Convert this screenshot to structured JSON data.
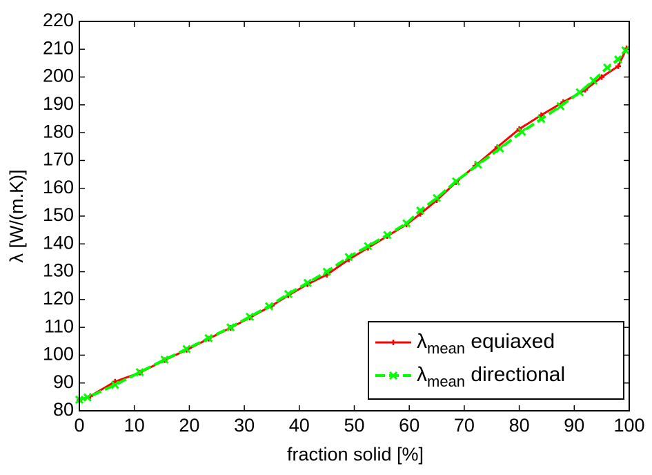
{
  "chart_data": {
    "type": "line",
    "xlabel": "fraction solid [%]",
    "ylabel": "λ [W/(m.K)]",
    "xlim": [
      0,
      100
    ],
    "xticks": [
      0,
      10,
      20,
      30,
      40,
      50,
      60,
      70,
      80,
      90,
      100
    ],
    "ylim": [
      80,
      220
    ],
    "yticks": [
      80,
      90,
      100,
      110,
      120,
      130,
      140,
      150,
      160,
      170,
      180,
      190,
      200,
      210,
      220
    ],
    "legend": "lower right",
    "series": [
      {
        "name": "λmean equiaxed",
        "color": "#ff0000",
        "marker": "+",
        "linestyle": "solid",
        "x": [
          0,
          2,
          6.5,
          11,
          15.5,
          19.5,
          23.5,
          27.5,
          31,
          35,
          38,
          41.5,
          45,
          49,
          52.5,
          56,
          59.5,
          62,
          65,
          68.5,
          72,
          76,
          80,
          84,
          88,
          92,
          95,
          98,
          99.5
        ],
        "values": [
          83.8,
          85.3,
          90.5,
          93.7,
          98.2,
          101.9,
          105.9,
          109.8,
          113.5,
          117.8,
          121.5,
          125.5,
          128.9,
          134.4,
          138.6,
          142.8,
          147,
          150.8,
          155.7,
          162.2,
          168.1,
          174.8,
          181.3,
          186.3,
          191,
          195.4,
          200,
          203.9,
          210.3
        ]
      },
      {
        "name": "λmean directional",
        "color": "#00ff00",
        "marker": "x",
        "linestyle": "dashed",
        "x": [
          0,
          1.5,
          6.5,
          11,
          15.5,
          19.5,
          23.5,
          27.5,
          31,
          34.5,
          38,
          41.5,
          45,
          49,
          52.5,
          56,
          59.5,
          62,
          65,
          68.5,
          72.5,
          76.5,
          80.5,
          84,
          87.5,
          91,
          93.5,
          96,
          98,
          99.3
        ],
        "values": [
          84,
          84.8,
          89.3,
          93.9,
          98.4,
          102.2,
          106.1,
          110,
          113.8,
          117.6,
          122,
          126,
          130,
          135.3,
          139.2,
          143.2,
          147.4,
          152,
          156.5,
          162.5,
          168.5,
          174.3,
          180.3,
          184.9,
          189.5,
          194.5,
          198.7,
          203.4,
          206.3,
          209.6
        ]
      }
    ]
  }
}
